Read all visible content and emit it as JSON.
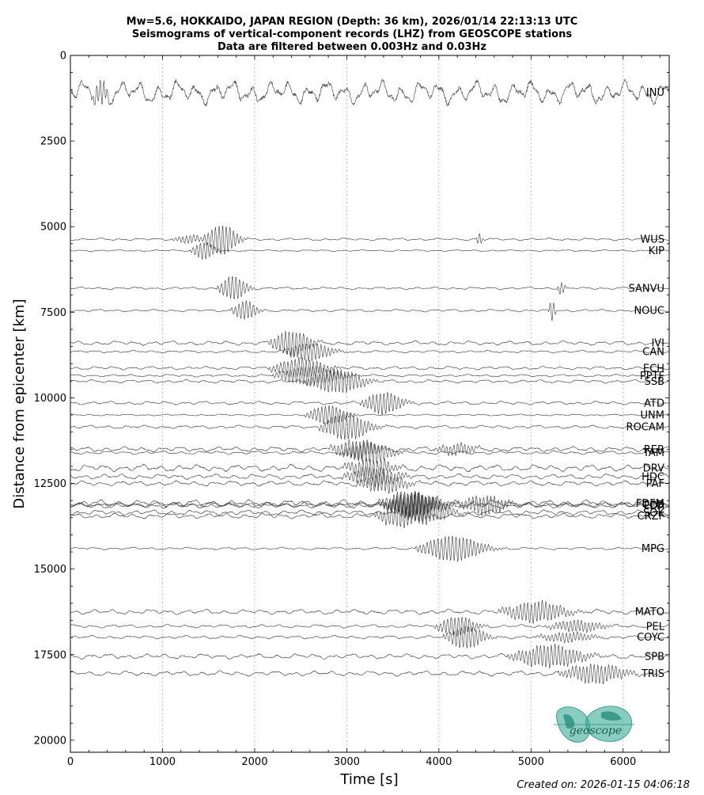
{
  "chart_data": {
    "type": "line",
    "title_lines": [
      "Mw=5.6, HOKKAIDO, JAPAN REGION (Depth: 36 km), 2026/01/14 22:13:13 UTC",
      "Seismograms of vertical-component records (LHZ) from GEOSCOPE stations",
      "Data are filtered between 0.003Hz and 0.03Hz"
    ],
    "xlabel": "Time [s]",
    "ylabel": "Distance from epicenter [km]",
    "xlim": [
      0,
      6500
    ],
    "ylim": [
      20350,
      0
    ],
    "y_inverted": true,
    "xticks": [
      0,
      1000,
      2000,
      3000,
      4000,
      5000,
      6000
    ],
    "yticks": [
      0,
      2500,
      5000,
      7500,
      10000,
      12500,
      15000,
      17500,
      20000
    ],
    "grid": "vertical dotted",
    "series": [
      {
        "name": "INU",
        "distance": 1080,
        "amp": 14,
        "events": [
          [
            330,
            14,
            100
          ]
        ]
      },
      {
        "name": "WUS",
        "distance": 5370,
        "amp": 1.5,
        "events": [
          [
            1300,
            5,
            200
          ],
          [
            1650,
            19,
            200
          ],
          [
            4440,
            7,
            40
          ]
        ]
      },
      {
        "name": "KIP",
        "distance": 5700,
        "amp": 1,
        "events": [
          [
            1450,
            11,
            150
          ]
        ]
      },
      {
        "name": "SANVU",
        "distance": 6800,
        "amp": 1.5,
        "events": [
          [
            1770,
            15,
            180
          ],
          [
            5330,
            8,
            50
          ]
        ]
      },
      {
        "name": "NOUC",
        "distance": 7450,
        "amp": 1.5,
        "events": [
          [
            1900,
            12,
            160
          ],
          [
            5230,
            14,
            40
          ]
        ]
      },
      {
        "name": "IVI",
        "distance": 8400,
        "amp": 2.5,
        "events": [
          [
            2400,
            16,
            250
          ]
        ]
      },
      {
        "name": "CAN",
        "distance": 8650,
        "amp": 1.5,
        "events": [
          [
            2600,
            11,
            300
          ]
        ]
      },
      {
        "name": "ECH",
        "distance": 9130,
        "amp": 2,
        "events": [
          [
            2500,
            12,
            350
          ]
        ]
      },
      {
        "name": "PPTF",
        "distance": 9350,
        "amp": 1.5,
        "events": [
          [
            2600,
            12,
            400
          ]
        ]
      },
      {
        "name": "SSB",
        "distance": 9520,
        "amp": 2,
        "events": [
          [
            2900,
            15,
            350
          ]
        ]
      },
      {
        "name": "ATD",
        "distance": 10150,
        "amp": 2,
        "events": [
          [
            3400,
            14,
            250
          ]
        ]
      },
      {
        "name": "UNM",
        "distance": 10500,
        "amp": 1,
        "events": [
          [
            2800,
            12,
            250
          ]
        ]
      },
      {
        "name": "ROCAM",
        "distance": 10850,
        "amp": 2,
        "events": [
          [
            3000,
            17,
            300
          ]
        ]
      },
      {
        "name": "TAM",
        "distance": 11600,
        "amp": 2,
        "events": [
          [
            3250,
            13,
            300
          ]
        ]
      },
      {
        "name": "RER",
        "distance": 11500,
        "amp": 3,
        "events": [
          [
            3100,
            12,
            300
          ],
          [
            4200,
            7,
            250
          ]
        ]
      },
      {
        "name": "DRV",
        "distance": 12050,
        "amp": 4,
        "events": [
          [
            3250,
            12,
            300
          ]
        ]
      },
      {
        "name": "HDC",
        "distance": 12300,
        "amp": 3,
        "events": [
          [
            3300,
            12,
            350
          ]
        ]
      },
      {
        "name": "PAF",
        "distance": 12500,
        "amp": 3,
        "events": [
          [
            3400,
            12,
            300
          ]
        ]
      },
      {
        "name": "FDFM",
        "distance": 13080,
        "amp": 4,
        "events": [
          [
            3700,
            15,
            350
          ]
        ]
      },
      {
        "name": "CCD",
        "distance": 13120,
        "amp": 3,
        "events": [
          [
            3700,
            15,
            350
          ],
          [
            4500,
            12,
            300
          ]
        ]
      },
      {
        "name": "FDA",
        "distance": 13150,
        "amp": 3,
        "events": [
          [
            3750,
            15,
            350
          ]
        ]
      },
      {
        "name": "SOK",
        "distance": 13350,
        "amp": 3,
        "events": [
          [
            3850,
            13,
            350
          ]
        ]
      },
      {
        "name": "CRZF",
        "distance": 13450,
        "amp": 3,
        "events": [
          [
            3600,
            14,
            300
          ]
        ]
      },
      {
        "name": "MPG",
        "distance": 14400,
        "amp": 1.5,
        "events": [
          [
            4150,
            16,
            400
          ]
        ]
      },
      {
        "name": "MATO",
        "distance": 16250,
        "amp": 3,
        "events": [
          [
            5050,
            13,
            400
          ]
        ]
      },
      {
        "name": "PEL",
        "distance": 16670,
        "amp": 2,
        "events": [
          [
            4200,
            12,
            250
          ],
          [
            5500,
            7,
            350
          ]
        ]
      },
      {
        "name": "COYC",
        "distance": 16990,
        "amp": 2,
        "events": [
          [
            4300,
            14,
            250
          ],
          [
            5400,
            6,
            350
          ]
        ]
      },
      {
        "name": "SPB",
        "distance": 17550,
        "amp": 3,
        "events": [
          [
            5200,
            14,
            450
          ]
        ]
      },
      {
        "name": "TRIS",
        "distance": 18050,
        "amp": 3,
        "events": [
          [
            5700,
            12,
            400
          ]
        ]
      }
    ]
  },
  "logo": {
    "text": "geoscope",
    "color": "#3aab97"
  },
  "footer": {
    "created": "Created on: 2026-01-15 04:06:18"
  }
}
